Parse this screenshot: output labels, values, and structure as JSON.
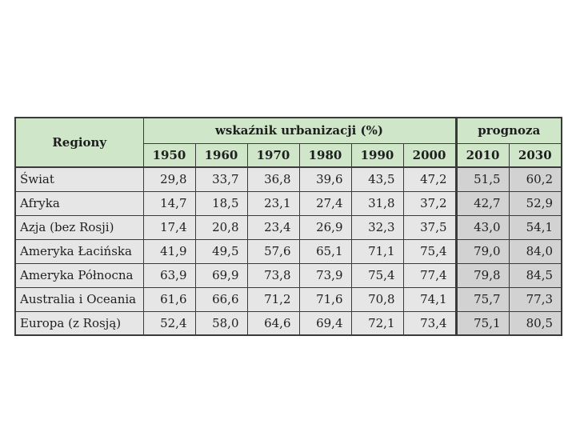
{
  "table": {
    "region_header": "Regiony",
    "group_header": "wskaźnik urbanizacji (%)",
    "forecast_header": "prognoza",
    "years": [
      "1950",
      "1960",
      "1970",
      "1980",
      "1990",
      "2000"
    ],
    "forecast_years": [
      "2010",
      "2030"
    ],
    "rows": [
      {
        "region": "Świat",
        "values": [
          "29,8",
          "33,7",
          "36,8",
          "39,6",
          "43,5",
          "47,2"
        ],
        "forecast": [
          "51,5",
          "60,2"
        ]
      },
      {
        "region": "Afryka",
        "values": [
          "14,7",
          "18,5",
          "23,1",
          "27,4",
          "31,8",
          "37,2"
        ],
        "forecast": [
          "42,7",
          "52,9"
        ]
      },
      {
        "region": "Azja (bez Rosji)",
        "values": [
          "17,4",
          "20,8",
          "23,4",
          "26,9",
          "32,3",
          "37,5"
        ],
        "forecast": [
          "43,0",
          "54,1"
        ]
      },
      {
        "region": "Ameryka Łacińska",
        "values": [
          "41,9",
          "49,5",
          "57,6",
          "65,1",
          "71,1",
          "75,4"
        ],
        "forecast": [
          "79,0",
          "84,0"
        ]
      },
      {
        "region": "Ameryka Północna",
        "values": [
          "63,9",
          "69,9",
          "73,8",
          "73,9",
          "75,4",
          "77,4"
        ],
        "forecast": [
          "79,8",
          "84,5"
        ]
      },
      {
        "region": "Australia i Oceania",
        "values": [
          "61,6",
          "66,6",
          "71,2",
          "71,6",
          "70,8",
          "74,1"
        ],
        "forecast": [
          "75,7",
          "77,3"
        ]
      },
      {
        "region": "Europa (z Rosją)",
        "values": [
          "52,4",
          "58,0",
          "64,6",
          "69,4",
          "72,1",
          "73,4"
        ],
        "forecast": [
          "75,1",
          "80,5"
        ]
      }
    ]
  }
}
